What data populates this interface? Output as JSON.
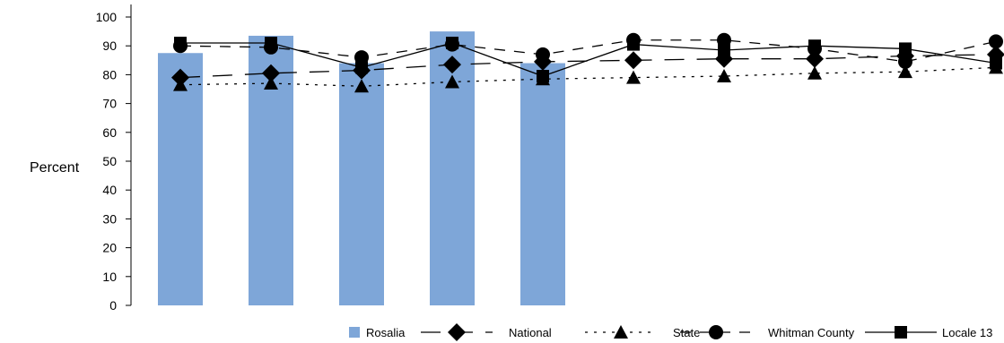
{
  "chart_data": {
    "type": "bar",
    "ylabel": "Percent",
    "ylim": [
      0,
      100
    ],
    "yticks": [
      0,
      10,
      20,
      30,
      40,
      50,
      60,
      70,
      80,
      90,
      100
    ],
    "category_count": 10,
    "legend_position": "bottom-right",
    "grid": false,
    "bars": {
      "name": "Rosalia",
      "color": "#7ea6d8",
      "values": [
        87.5,
        93.5,
        84.0,
        95.0,
        84.0,
        null,
        null,
        null,
        null,
        null
      ]
    },
    "lines": [
      {
        "name": "National",
        "marker": "diamond",
        "dash": "long-dash",
        "values": [
          79,
          80.5,
          81.5,
          83.5,
          84.5,
          85,
          85.5,
          85.5,
          86.5,
          87
        ]
      },
      {
        "name": "State",
        "marker": "triangle",
        "dash": "dotted",
        "values": [
          76.5,
          77,
          76,
          77.5,
          78.5,
          79,
          79.5,
          80.5,
          81,
          82.5
        ]
      },
      {
        "name": "Whitman County",
        "marker": "circle",
        "dash": "medium-dash",
        "values": [
          90,
          89.5,
          86,
          90.5,
          87,
          92,
          92,
          89,
          84.5,
          91.5
        ]
      },
      {
        "name": "Locale 13",
        "marker": "square",
        "dash": "solid",
        "values": [
          91,
          91,
          82.5,
          91,
          79.5,
          90.5,
          88.5,
          90,
          89,
          84
        ]
      }
    ]
  }
}
